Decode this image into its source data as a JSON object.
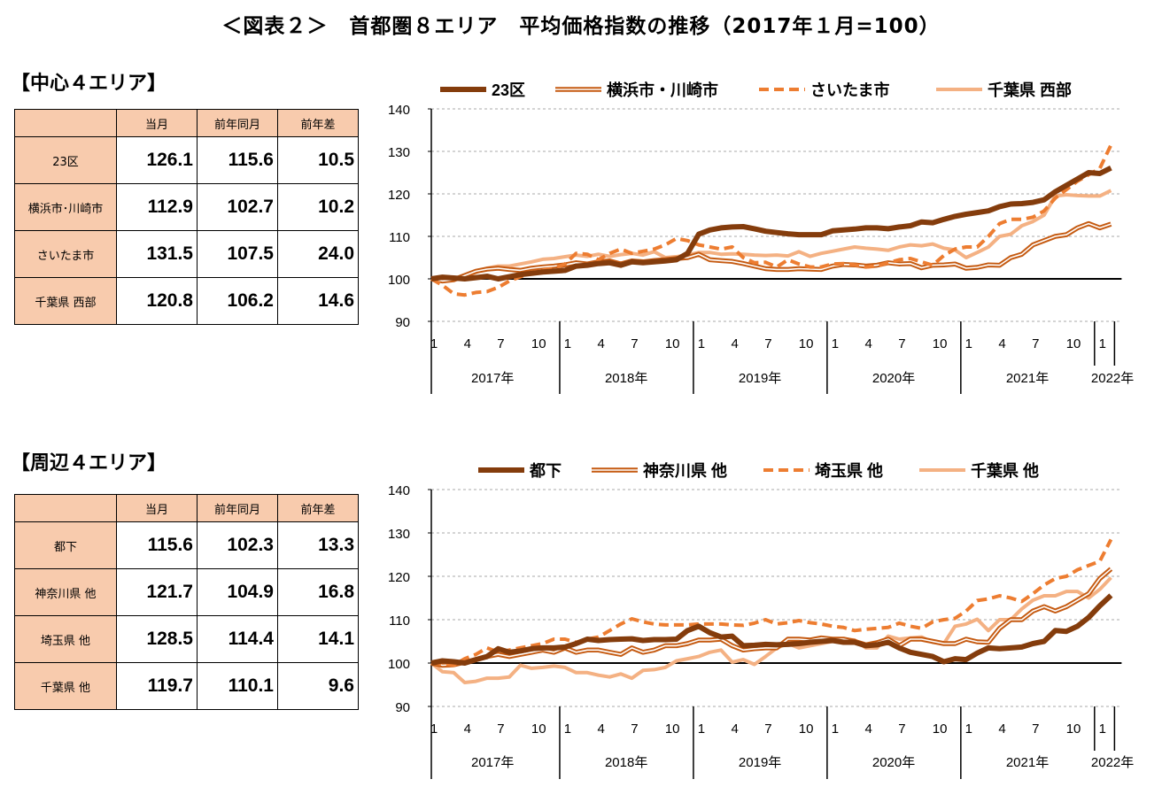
{
  "title": "＜図表２＞　首都圏８エリア　平均価格指数の推移（2017年１月=100）",
  "colors": {
    "dark": "#843C0C",
    "double": "#C55A11",
    "dashed": "#ED7D31",
    "light": "#F4B183",
    "header_fill": "#F8CBAD"
  },
  "sections": [
    {
      "heading": "【中心４エリア】",
      "table": {
        "columns": [
          "",
          "当月",
          "前年同月",
          "前年差"
        ],
        "rows": [
          [
            "23区",
            "126.1",
            "115.6",
            "10.5"
          ],
          [
            "横浜市･川崎市",
            "112.9",
            "102.7",
            "10.2"
          ],
          [
            "さいたま市",
            "131.5",
            "107.5",
            "24.0"
          ],
          [
            "千葉県 西部",
            "120.8",
            "106.2",
            "14.6"
          ]
        ]
      }
    },
    {
      "heading": "【周辺４エリア】",
      "table": {
        "columns": [
          "",
          "当月",
          "前年同月",
          "前年差"
        ],
        "rows": [
          [
            "都下",
            "115.6",
            "102.3",
            "13.3"
          ],
          [
            "神奈川県 他",
            "121.7",
            "104.9",
            "16.8"
          ],
          [
            "埼玉県 他",
            "128.5",
            "114.4",
            "14.1"
          ],
          [
            "千葉県 他",
            "119.7",
            "110.1",
            "9.6"
          ]
        ]
      }
    }
  ],
  "chart_data": [
    {
      "type": "line",
      "ylim": [
        90,
        140
      ],
      "yticks": [
        90,
        100,
        110,
        120,
        130,
        140
      ],
      "grid": true,
      "legend": "top",
      "x_start": "2017-01",
      "x_end": "2022-02",
      "month_ticks": [
        "1",
        "4",
        "7",
        "10"
      ],
      "years": [
        "2017年",
        "2018年",
        "2019年",
        "2020年",
        "2021年",
        "2022年"
      ],
      "series": [
        {
          "name": "23区",
          "style": "dark",
          "values": [
            100,
            100.4,
            100.2,
            100,
            100.3,
            100.6,
            100,
            100.5,
            101,
            101.3,
            101.6,
            101.8,
            102,
            103,
            103.2,
            103.6,
            103.8,
            103.2,
            104,
            103.8,
            104,
            104.2,
            104.5,
            106,
            110.5,
            111.5,
            112,
            112.2,
            112.3,
            111.8,
            111.2,
            110.9,
            110.6,
            110.4,
            110.4,
            110.4,
            111.3,
            111.5,
            111.7,
            112,
            112,
            111.8,
            112.2,
            112.5,
            113.4,
            113.2,
            114,
            114.7,
            115.2,
            115.6,
            116,
            117,
            117.6,
            117.7,
            118,
            118.6,
            120.5,
            122,
            123.5,
            125,
            124.8,
            126.1
          ]
        },
        {
          "name": "横浜市・川崎市",
          "style": "double",
          "values": [
            100,
            99.5,
            99.8,
            100.8,
            101.8,
            102.3,
            102.5,
            102.2,
            102,
            102.5,
            102.8,
            103,
            103.3,
            103.8,
            103.5,
            104,
            104.2,
            103.5,
            104.2,
            104,
            104.3,
            104.5,
            104.8,
            105,
            105.8,
            104.5,
            104.3,
            104.1,
            103.6,
            103,
            102.4,
            102.2,
            102.2,
            102.4,
            102.3,
            102.2,
            103,
            103.4,
            103.3,
            103,
            103.2,
            103.8,
            103.5,
            103.6,
            102.6,
            103.2,
            103.3,
            103.5,
            102.5,
            102.7,
            103.3,
            103.2,
            105,
            105.8,
            108,
            109,
            110,
            110.4,
            112,
            113,
            112,
            112.9
          ]
        },
        {
          "name": "さいたま市",
          "style": "dashed",
          "values": [
            100,
            98.5,
            96.5,
            96.2,
            96.8,
            97,
            98,
            99.5,
            100.5,
            101.5,
            102,
            102.5,
            103.5,
            106,
            105.8,
            104.5,
            106,
            107,
            106,
            106.5,
            107,
            108,
            109.5,
            109,
            108,
            107.5,
            107,
            107.5,
            105,
            103.8,
            103.9,
            102.8,
            104.5,
            103.5,
            102.8,
            102.8,
            103.5,
            103.6,
            103.3,
            102.8,
            103,
            103.8,
            104.5,
            104.8,
            104,
            103.2,
            105.5,
            107,
            107.5,
            107.5,
            110,
            113,
            114,
            114,
            114.5,
            116,
            119,
            121,
            123,
            124.5,
            126,
            131.5
          ]
        },
        {
          "name": "千葉県 西部",
          "style": "light",
          "values": [
            100,
            99.8,
            100,
            100.5,
            101.5,
            102.5,
            103,
            103,
            103.5,
            104,
            104.6,
            104.8,
            105.2,
            105.6,
            105.3,
            105.8,
            105.3,
            105.7,
            106,
            105.6,
            106.4,
            105,
            105.2,
            105.6,
            106.2,
            106.2,
            105.8,
            105.9,
            105.8,
            105.6,
            105.5,
            105.6,
            105.4,
            106.4,
            105.3,
            106,
            106.5,
            107,
            107.5,
            107.2,
            107,
            106.7,
            107.5,
            108,
            107.8,
            108.2,
            107.2,
            106.8,
            105,
            106.2,
            107.5,
            110,
            110.5,
            112.5,
            113.5,
            115,
            119.5,
            119.8,
            119.6,
            119.5,
            119.5,
            120.8
          ]
        }
      ]
    },
    {
      "type": "line",
      "ylim": [
        90,
        140
      ],
      "yticks": [
        90,
        100,
        110,
        120,
        130,
        140
      ],
      "grid": true,
      "legend": "top",
      "x_start": "2017-01",
      "x_end": "2022-02",
      "month_ticks": [
        "1",
        "4",
        "7",
        "10"
      ],
      "years": [
        "2017年",
        "2018年",
        "2019年",
        "2020年",
        "2021年",
        "2022年"
      ],
      "series": [
        {
          "name": "都下",
          "style": "dark",
          "values": [
            100,
            100.5,
            100.3,
            100,
            100.8,
            101.5,
            103.3,
            102.5,
            102.8,
            103.3,
            103.5,
            103.5,
            103.7,
            104.5,
            105.5,
            105.2,
            105.4,
            105.5,
            105.6,
            105.2,
            105.4,
            105.4,
            105.5,
            107.5,
            108.5,
            107,
            106,
            106.2,
            104,
            104.1,
            104.3,
            104.2,
            104.3,
            104.5,
            104.8,
            105,
            105.2,
            104.8,
            104.8,
            104,
            104.2,
            104.8,
            103.5,
            102.5,
            102,
            101.5,
            100.3,
            101,
            100.8,
            102.3,
            103.5,
            103.3,
            103.5,
            103.7,
            104.5,
            105,
            107.5,
            107.3,
            108.5,
            110.5,
            113.2,
            115.6
          ]
        },
        {
          "name": "神奈川県 他",
          "style": "double",
          "values": [
            100,
            99.5,
            99.6,
            100.2,
            100.8,
            101.5,
            102,
            101.5,
            102,
            102.5,
            103,
            102.5,
            103.5,
            102.5,
            103,
            103,
            102.5,
            102,
            103.5,
            102.5,
            103,
            104,
            104,
            104.5,
            105.3,
            105.3,
            105.5,
            104,
            103,
            103.3,
            103.5,
            103.5,
            105.5,
            105.5,
            105.3,
            105.8,
            105.5,
            105.5,
            105,
            104.2,
            104.7,
            105.5,
            104,
            105.5,
            105.5,
            105,
            104.5,
            104.5,
            105.5,
            104.9,
            104.8,
            108,
            110,
            110,
            112,
            113,
            112,
            113,
            114.5,
            116,
            119.5,
            121.7
          ]
        },
        {
          "name": "埼玉県 他",
          "style": "dashed",
          "values": [
            100,
            99.8,
            99.5,
            101,
            102,
            103.5,
            102.5,
            103,
            103.5,
            104,
            104.5,
            105.5,
            105.5,
            104.8,
            105.5,
            106,
            107.5,
            109,
            110.2,
            109.5,
            109,
            108.8,
            108.8,
            108.8,
            109,
            109,
            109,
            108.8,
            108.7,
            109.2,
            110,
            109,
            109.3,
            109.8,
            109.3,
            109,
            108.5,
            108.2,
            107.5,
            107.8,
            108,
            108.2,
            109.2,
            108.5,
            108,
            109.5,
            110,
            110.3,
            112,
            114.4,
            114.8,
            115.5,
            115,
            114.2,
            116,
            118,
            119.5,
            120,
            121.5,
            122.5,
            123.5,
            128.5
          ]
        },
        {
          "name": "千葉県 他",
          "style": "light",
          "values": [
            100,
            98,
            97.8,
            95.5,
            95.8,
            96.5,
            96.5,
            96.8,
            99.5,
            98.8,
            99,
            99.3,
            99,
            97.8,
            97.8,
            97.2,
            96.8,
            97.5,
            96.5,
            98.3,
            98.5,
            99,
            100.5,
            101,
            101.5,
            102.5,
            103,
            100.2,
            100.8,
            99.7,
            101.5,
            103.5,
            104.5,
            103.5,
            104,
            104.5,
            105,
            105.5,
            105.3,
            103.5,
            103.5,
            106.2,
            105.5,
            105.8,
            106,
            104.8,
            104.5,
            108.5,
            109,
            110.1,
            107.5,
            110,
            110,
            112.5,
            114.5,
            115.5,
            115.5,
            116.5,
            116.5,
            115,
            117,
            119.7
          ]
        }
      ]
    }
  ]
}
